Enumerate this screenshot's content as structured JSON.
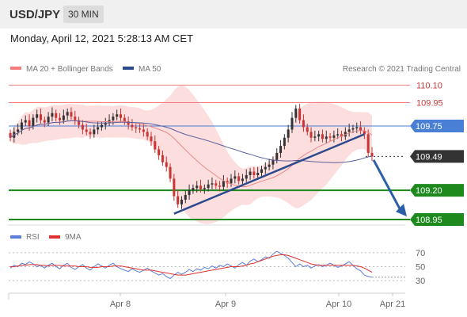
{
  "header": {
    "pair": "USD/JPY",
    "timeframe": "30 MIN"
  },
  "timestamp": "Monday, April 12, 2021 5:28:13 AM CET",
  "legend": {
    "ma20": "MA 20 + Bollinger Bands",
    "ma50": "MA 50",
    "credit": "Research © 2021 Trading Central"
  },
  "rsi_legend": {
    "rsi": "RSI",
    "ma9": "9MA"
  },
  "colors": {
    "resistance": "#f47c7c",
    "blue_level": "#4a7fd6",
    "current": "#333333",
    "support": "#1e8a1e",
    "trend": "#2c4a8c",
    "arrow": "#2b5fa8",
    "bollinger": "#fbd3d3",
    "ma20": "#e88a8a",
    "ma50": "#5a5f9c",
    "candle_up": "#333333",
    "candle_down": "#cc3333",
    "rsi": "#5b7fd9",
    "rsi_ma": "#e03030"
  },
  "chart_data": {
    "type": "candlestick",
    "price_range": [
      108.93,
      110.15
    ],
    "levels": [
      {
        "value": 110.1,
        "label": "110.10",
        "kind": "resistance"
      },
      {
        "value": 109.95,
        "label": "109.95",
        "kind": "resistance"
      },
      {
        "value": 109.75,
        "label": "109.75",
        "kind": "pivot"
      },
      {
        "value": 109.49,
        "label": "109.49",
        "kind": "current"
      },
      {
        "value": 109.2,
        "label": "109.20",
        "kind": "support"
      },
      {
        "value": 108.95,
        "label": "108.95",
        "kind": "support"
      }
    ],
    "x_ticks": [
      "Apr 8",
      "Apr 9",
      "Apr 10",
      "Apr 21"
    ],
    "close": [
      109.65,
      109.7,
      109.72,
      109.78,
      109.8,
      109.75,
      109.82,
      109.85,
      109.8,
      109.78,
      109.83,
      109.86,
      109.82,
      109.8,
      109.84,
      109.87,
      109.83,
      109.8,
      109.76,
      109.72,
      109.7,
      109.68,
      109.72,
      109.74,
      109.76,
      109.78,
      109.8,
      109.83,
      109.85,
      109.82,
      109.79,
      109.76,
      109.74,
      109.73,
      109.72,
      109.7,
      109.66,
      109.62,
      109.55,
      109.5,
      109.44,
      109.4,
      109.3,
      109.15,
      109.08,
      109.12,
      109.16,
      109.2,
      109.22,
      109.24,
      109.21,
      109.22,
      109.25,
      109.26,
      109.24,
      109.23,
      109.28,
      109.26,
      109.3,
      109.32,
      109.28,
      109.3,
      109.33,
      109.36,
      109.33,
      109.35,
      109.38,
      109.4,
      109.42,
      109.46,
      109.52,
      109.58,
      109.65,
      109.72,
      109.82,
      109.9,
      109.8,
      109.74,
      109.7,
      109.65,
      109.66,
      109.68,
      109.64,
      109.66,
      109.65,
      109.67,
      109.68,
      109.66,
      109.7,
      109.72,
      109.73,
      109.74,
      109.71,
      109.68,
      109.52,
      109.49
    ],
    "rsi_range": [
      20,
      80
    ],
    "rsi_ticks": [
      70,
      50,
      30
    ],
    "rsi": [
      48,
      52,
      50,
      55,
      53,
      57,
      54,
      50,
      52,
      48,
      52,
      55,
      50,
      47,
      52,
      55,
      49,
      46,
      50,
      53,
      48,
      45,
      50,
      54,
      51,
      48,
      52,
      55,
      50,
      47,
      45,
      43,
      47,
      44,
      42,
      45,
      48,
      44,
      41,
      38,
      40,
      36,
      33,
      38,
      42,
      39,
      42,
      46,
      43,
      47,
      45,
      49,
      47,
      51,
      48,
      52,
      50,
      54,
      51,
      48,
      53,
      56,
      52,
      58,
      61,
      57,
      60,
      64,
      62,
      68,
      72,
      69,
      66,
      62,
      56,
      50,
      54,
      50,
      52,
      48,
      51,
      53,
      50,
      52,
      55,
      52,
      49,
      51,
      54,
      57,
      52,
      47,
      44,
      38,
      36,
      35
    ],
    "rsi_ma": [
      50,
      50,
      51,
      52,
      52,
      53,
      53,
      53,
      52,
      52,
      51,
      52,
      52,
      52,
      51,
      51,
      51,
      51,
      50,
      50,
      50,
      49,
      49,
      49,
      50,
      50,
      50,
      51,
      51,
      51,
      50,
      49,
      48,
      47,
      46,
      45,
      45,
      45,
      44,
      43,
      42,
      41,
      40,
      39,
      38,
      38,
      38,
      39,
      40,
      41,
      42,
      43,
      44,
      45,
      46,
      47,
      48,
      49,
      50,
      50,
      50,
      51,
      52,
      54,
      55,
      57,
      59,
      61,
      63,
      65,
      66,
      67,
      67,
      66,
      64,
      62,
      60,
      58,
      56,
      54,
      53,
      52,
      52,
      52,
      52,
      52,
      52,
      52,
      52,
      52,
      52,
      51,
      50,
      48,
      45,
      42
    ]
  }
}
